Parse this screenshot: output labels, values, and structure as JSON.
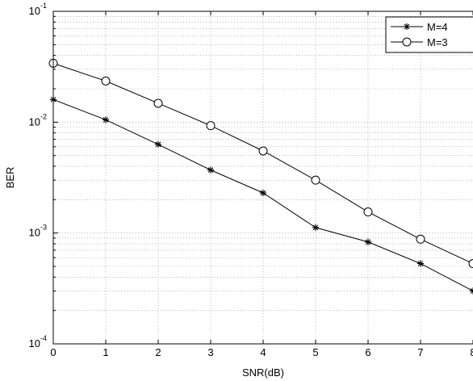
{
  "chart_data": {
    "type": "line",
    "xlabel": "SNR(dB)",
    "ylabel": "BER",
    "xlim": [
      0,
      8
    ],
    "ylim": [
      0.0001,
      0.1
    ],
    "yscale": "log",
    "grid": true,
    "legend_position": "top-right",
    "x_ticks": [
      "0",
      "1",
      "2",
      "3",
      "4",
      "5",
      "6",
      "7",
      "8"
    ],
    "y_ticks": [
      {
        "value": 0.1,
        "base": "10",
        "exp": "-1"
      },
      {
        "value": 0.01,
        "base": "10",
        "exp": "-2"
      },
      {
        "value": 0.001,
        "base": "10",
        "exp": "-3"
      },
      {
        "value": 0.0001,
        "base": "10",
        "exp": "-4"
      }
    ],
    "series": [
      {
        "name": "M=4",
        "marker": "star",
        "x": [
          0,
          1,
          2,
          3,
          4,
          5,
          6,
          7,
          8
        ],
        "y": [
          0.016,
          0.0105,
          0.0063,
          0.0037,
          0.0023,
          0.00112,
          0.00083,
          0.00053,
          0.0003
        ]
      },
      {
        "name": "M=3",
        "marker": "circle",
        "x": [
          0,
          1,
          2,
          3,
          4,
          5,
          6,
          7,
          8
        ],
        "y": [
          0.034,
          0.0235,
          0.0148,
          0.0093,
          0.0055,
          0.003,
          0.00155,
          0.00088,
          0.00053
        ]
      }
    ]
  }
}
